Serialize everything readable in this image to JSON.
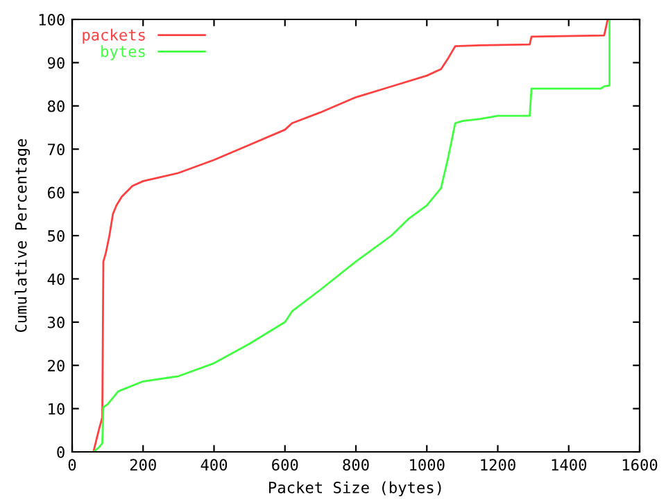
{
  "chart_data": {
    "type": "line",
    "xlabel": "Packet Size (bytes)",
    "ylabel": "Cumulative Percentage",
    "xlim": [
      0,
      1600
    ],
    "ylim": [
      0,
      100
    ],
    "xticks": [
      0,
      200,
      400,
      600,
      800,
      1000,
      1200,
      1400,
      1600
    ],
    "yticks": [
      0,
      10,
      20,
      30,
      40,
      50,
      60,
      70,
      80,
      90,
      100
    ],
    "legend": "top left",
    "grid": false,
    "series": [
      {
        "name": "packets",
        "color": "#ff4040",
        "x": [
          60,
          75,
          85,
          88,
          95,
          105,
          115,
          125,
          140,
          170,
          200,
          300,
          400,
          500,
          600,
          620,
          700,
          800,
          900,
          1000,
          1040,
          1060,
          1080,
          1150,
          1290,
          1295,
          1500,
          1510
        ],
        "values": [
          0,
          5,
          8,
          44,
          46,
          50,
          55,
          57,
          59,
          61.5,
          62.6,
          64.5,
          67.5,
          71,
          74.5,
          76,
          78.5,
          82,
          84.5,
          87,
          88.5,
          91,
          93.8,
          94,
          94.2,
          96,
          96.3,
          100
        ]
      },
      {
        "name": "bytes",
        "color": "#40ff40",
        "x": [
          60,
          75,
          85,
          88,
          100,
          110,
          130,
          200,
          300,
          400,
          500,
          600,
          620,
          700,
          800,
          900,
          950,
          1000,
          1040,
          1060,
          1080,
          1100,
          1150,
          1200,
          1290,
          1295,
          1490,
          1500,
          1515,
          1515
        ],
        "values": [
          0,
          1,
          2,
          10.3,
          11,
          12,
          14,
          16.3,
          17.5,
          20.5,
          25,
          30,
          32.5,
          37.5,
          44,
          50,
          54,
          57,
          61,
          68,
          76,
          76.5,
          77,
          77.7,
          77.7,
          84,
          84,
          84.5,
          84.7,
          100
        ]
      }
    ]
  }
}
